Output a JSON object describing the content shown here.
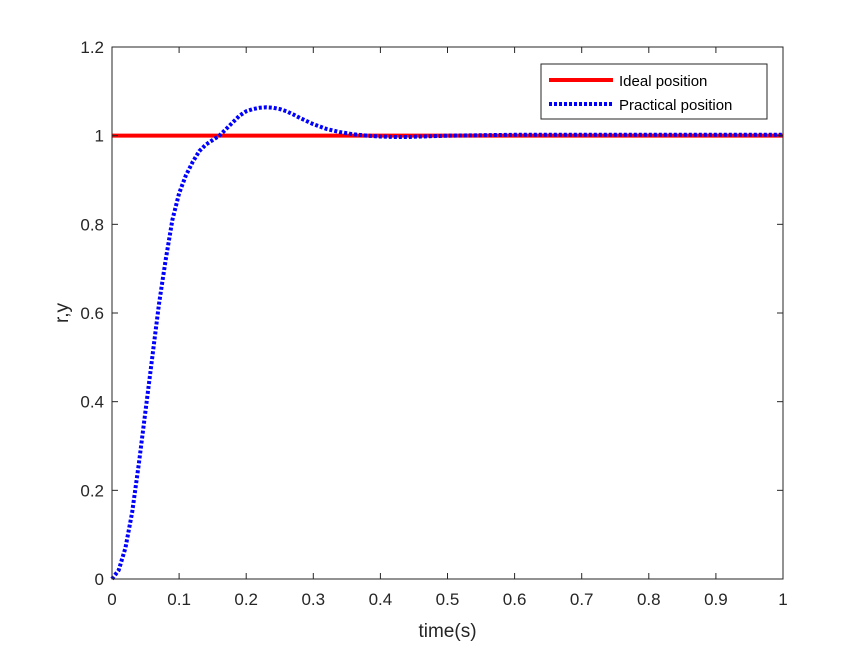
{
  "chart_data": {
    "type": "line",
    "title": "",
    "xlabel": "time(s)",
    "ylabel": "r,y",
    "xlim": [
      0,
      1
    ],
    "ylim": [
      0,
      1.2
    ],
    "xticks": [
      0,
      0.1,
      0.2,
      0.3,
      0.4,
      0.5,
      0.6,
      0.7,
      0.8,
      0.9,
      1
    ],
    "xtick_labels": [
      "0",
      "0.1",
      "0.2",
      "0.3",
      "0.4",
      "0.5",
      "0.6",
      "0.7",
      "0.8",
      "0.9",
      "1"
    ],
    "yticks": [
      0,
      0.2,
      0.4,
      0.6,
      0.8,
      1,
      1.2
    ],
    "ytick_labels": [
      "0",
      "0.2",
      "0.4",
      "0.6",
      "0.8",
      "1",
      "1.2"
    ],
    "grid": false,
    "legend": "top-right",
    "series": [
      {
        "name": "Ideal position",
        "color": "#ff0000",
        "style": "solid",
        "x": [
          0,
          1
        ],
        "y": [
          1,
          1
        ]
      },
      {
        "name": "Practical position",
        "color": "#0000ff",
        "style": "dotted",
        "x": [
          0,
          0.01,
          0.02,
          0.03,
          0.04,
          0.05,
          0.06,
          0.07,
          0.08,
          0.09,
          0.1,
          0.11,
          0.12,
          0.13,
          0.14,
          0.15,
          0.16,
          0.17,
          0.18,
          0.19,
          0.2,
          0.21,
          0.22,
          0.23,
          0.24,
          0.25,
          0.26,
          0.27,
          0.28,
          0.29,
          0.3,
          0.32,
          0.34,
          0.36,
          0.38,
          0.4,
          0.42,
          0.44,
          0.46,
          0.48,
          0.5,
          0.55,
          0.6,
          0.65,
          0.7,
          0.75,
          0.8,
          0.85,
          0.9,
          0.95,
          1
        ],
        "y": [
          0,
          0.02,
          0.07,
          0.15,
          0.26,
          0.38,
          0.5,
          0.62,
          0.72,
          0.81,
          0.87,
          0.91,
          0.94,
          0.965,
          0.98,
          0.99,
          1.0,
          1.015,
          1.03,
          1.045,
          1.055,
          1.06,
          1.063,
          1.064,
          1.063,
          1.06,
          1.055,
          1.048,
          1.04,
          1.033,
          1.026,
          1.015,
          1.008,
          1.003,
          1.0,
          0.998,
          0.997,
          0.997,
          0.998,
          0.999,
          1.0,
          1.001,
          1.002,
          1.002,
          1.002,
          1.002,
          1.002,
          1.002,
          1.002,
          1.002,
          1.002
        ]
      }
    ]
  }
}
